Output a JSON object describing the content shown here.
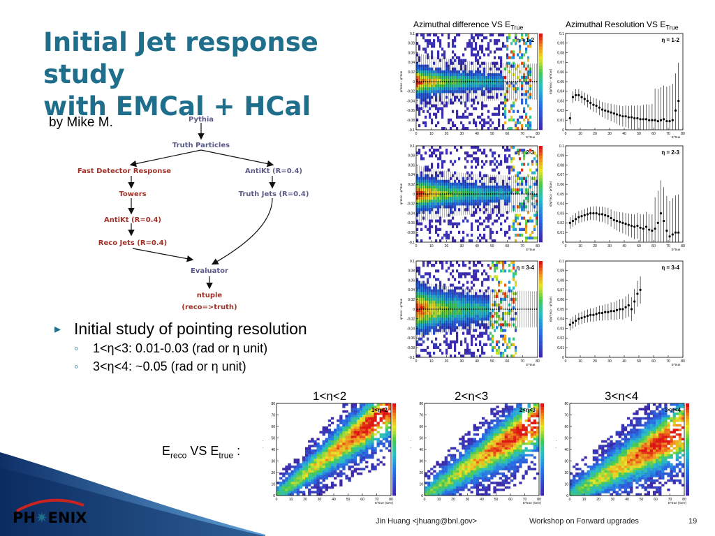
{
  "slide": {
    "title_line1": "Initial Jet response study",
    "title_line2": "with EMCal + HCal",
    "author": "by Mike M.",
    "page_number": "19"
  },
  "flowchart": {
    "nodes": {
      "pythia": "Pythia",
      "truth_particles": "Truth Particles",
      "fast_detector": "Fast Detector Response",
      "antikt_truth": "AntiKt (R=0.4)",
      "towers": "Towers",
      "truth_jets": "Truth Jets (R=0.4)",
      "antikt_reco": "AntiKt (R=0.4)",
      "reco_jets": "Reco Jets (R=0.4)",
      "evaluator": "Evaluator",
      "ntuple": "ntuple",
      "reco_truth": "(reco=>truth)"
    },
    "colors": {
      "blue_text": "#5b5b8a",
      "red_text": "#a0322a"
    }
  },
  "bullets": {
    "main": "Initial study of pointing resolution",
    "sub1": "1<η<3: 0.01-0.03 (rad or η unit)",
    "sub2": "3<η<4: ~0.05 (rad or η unit)"
  },
  "column_headers": {
    "left_main": "Azimuthal difference VS E",
    "left_sub": "True",
    "right_main": "Azimuthal Resolution VS E",
    "right_sub": "True"
  },
  "eta_headers": [
    "1<η<2",
    "2<η<3",
    "3<η<4"
  ],
  "ereco_label": {
    "e1": "E",
    "reco": "reco",
    "vs": " VS E",
    "true": "true",
    "colon": " :"
  },
  "logo": {
    "left": "PH",
    "star": "✷",
    "right": "ENIX"
  },
  "footer": {
    "author": "Jin Huang <jhuang@bnl.gov>",
    "workshop": "Workshop on Forward upgrades"
  },
  "chart_data": [
    {
      "type": "heatmap",
      "panel": "azimuthal-difference",
      "eta_label": "η = 1-2",
      "xlabel": "E^true",
      "ylabel": "φ^reco - φ^true",
      "xlim": [
        0,
        80
      ],
      "ylim": [
        -0.1,
        0.1
      ],
      "x_ticks": [
        "0",
        "10",
        "20",
        "30",
        "40",
        "50",
        "60",
        "70",
        "80"
      ],
      "y_ticks": [
        "-0.1",
        "-0.08",
        "-0.06",
        "-0.04",
        "-0.02",
        "0",
        "0.02",
        "0.04",
        "0.06",
        "0.08",
        "0.1"
      ]
    },
    {
      "type": "scatter",
      "panel": "azimuthal-resolution",
      "eta_label": "η = 1-2",
      "xlabel": "E^true",
      "ylabel": "σ(φ^reco - φ^true)",
      "xlim": [
        0,
        80
      ],
      "ylim": [
        0,
        0.1
      ],
      "x_ticks": [
        "0",
        "10",
        "20",
        "30",
        "40",
        "50",
        "60",
        "70",
        "80"
      ],
      "y_ticks": [
        "0",
        "0.01",
        "0.02",
        "0.03",
        "0.04",
        "0.05",
        "0.06",
        "0.07",
        "0.08",
        "0.09",
        "0.1"
      ],
      "x": [
        3,
        5,
        7,
        9,
        11,
        13,
        15,
        17,
        19,
        21,
        23,
        25,
        27,
        29,
        31,
        33,
        35,
        37,
        39,
        41,
        43,
        45,
        47,
        49,
        51,
        53,
        55,
        57,
        59,
        61,
        63,
        65,
        67,
        69,
        71,
        73,
        75,
        77
      ],
      "y": [
        0.012,
        0.034,
        0.036,
        0.036,
        0.034,
        0.032,
        0.03,
        0.028,
        0.026,
        0.025,
        0.023,
        0.021,
        0.02,
        0.019,
        0.018,
        0.017,
        0.016,
        0.015,
        0.014,
        0.014,
        0.013,
        0.013,
        0.012,
        0.012,
        0.011,
        0.011,
        0.011,
        0.01,
        0.01,
        0.01,
        0.009,
        0.01,
        0.011,
        0.009,
        0.009,
        0.01,
        0.02,
        0.03
      ]
    },
    {
      "type": "heatmap",
      "panel": "azimuthal-difference",
      "eta_label": "η = 2-3",
      "xlabel": "E^true",
      "ylabel": "φ^reco - φ^true",
      "xlim": [
        0,
        80
      ],
      "ylim": [
        -0.1,
        0.1
      ],
      "x_ticks": [
        "0",
        "10",
        "20",
        "30",
        "40",
        "50",
        "60",
        "70",
        "80"
      ],
      "y_ticks": [
        "-0.1",
        "-0.08",
        "-0.06",
        "-0.04",
        "-0.02",
        "0",
        "0.02",
        "0.04",
        "0.06",
        "0.08",
        "0.1"
      ]
    },
    {
      "type": "scatter",
      "panel": "azimuthal-resolution",
      "eta_label": "η = 2-3",
      "xlabel": "E^true",
      "ylabel": "σ(φ^reco - φ^true)",
      "xlim": [
        0,
        80
      ],
      "ylim": [
        0,
        0.1
      ],
      "x_ticks": [
        "0",
        "10",
        "20",
        "30",
        "40",
        "50",
        "60",
        "70",
        "80"
      ],
      "y_ticks": [
        "0",
        "0.01",
        "0.02",
        "0.03",
        "0.04",
        "0.05",
        "0.06",
        "0.07",
        "0.08",
        "0.09",
        "0.1"
      ],
      "x": [
        3,
        5,
        7,
        9,
        11,
        13,
        15,
        17,
        19,
        21,
        23,
        25,
        27,
        29,
        31,
        33,
        35,
        37,
        39,
        41,
        43,
        45,
        47,
        49,
        51,
        53,
        55,
        57,
        59,
        61,
        63,
        65,
        67,
        69,
        71,
        73,
        75,
        77
      ],
      "y": [
        0.02,
        0.022,
        0.024,
        0.026,
        0.027,
        0.028,
        0.029,
        0.03,
        0.03,
        0.03,
        0.029,
        0.029,
        0.028,
        0.027,
        0.025,
        0.023,
        0.022,
        0.021,
        0.02,
        0.019,
        0.018,
        0.017,
        0.016,
        0.017,
        0.015,
        0.014,
        0.016,
        0.013,
        0.012,
        0.014,
        0.02,
        0.03,
        0.022,
        0.012,
        0.006,
        0.008,
        0.01,
        0.01
      ]
    },
    {
      "type": "heatmap",
      "panel": "azimuthal-difference",
      "eta_label": "η = 3-4",
      "xlabel": "E^true",
      "ylabel": "φ^reco - φ^true",
      "xlim": [
        0,
        80
      ],
      "ylim": [
        -0.1,
        0.1
      ],
      "x_ticks": [
        "0",
        "10",
        "20",
        "30",
        "40",
        "50",
        "60",
        "70",
        "80"
      ],
      "y_ticks": [
        "-0.1",
        "-0.08",
        "-0.06",
        "-0.04",
        "-0.02",
        "0",
        "0.02",
        "0.04",
        "0.06",
        "0.08",
        "0.1"
      ]
    },
    {
      "type": "scatter",
      "panel": "azimuthal-resolution",
      "eta_label": "η = 3-4",
      "xlabel": "E^true",
      "ylabel": "σ(φ^reco - φ^true)",
      "xlim": [
        0,
        80
      ],
      "ylim": [
        0,
        0.1
      ],
      "x_ticks": [
        "0",
        "10",
        "20",
        "30",
        "40",
        "50",
        "60",
        "70",
        "80"
      ],
      "y_ticks": [
        "0",
        "0.01",
        "0.02",
        "0.03",
        "0.04",
        "0.05",
        "0.06",
        "0.07",
        "0.08",
        "0.09",
        "0.1"
      ],
      "x": [
        3,
        5,
        7,
        9,
        11,
        13,
        15,
        17,
        19,
        21,
        23,
        25,
        27,
        29,
        31,
        33,
        35,
        37,
        39,
        41,
        43,
        45,
        47,
        49,
        51
      ],
      "y": [
        0.034,
        0.036,
        0.038,
        0.04,
        0.041,
        0.042,
        0.043,
        0.044,
        0.044,
        0.045,
        0.046,
        0.046,
        0.047,
        0.047,
        0.048,
        0.048,
        0.049,
        0.05,
        0.05,
        0.052,
        0.054,
        0.05,
        0.058,
        0.066,
        0.07
      ]
    },
    {
      "type": "heatmap",
      "panel": "ereco-vs-etrue",
      "eta_label": "1<η<2",
      "xlabel": "E^true (GeV)",
      "ylabel": "E^reco (GeV)",
      "xlim": [
        0,
        80
      ],
      "ylim": [
        0,
        80
      ],
      "x_ticks": [
        "0",
        "10",
        "20",
        "30",
        "40",
        "50",
        "60",
        "70",
        "80"
      ],
      "y_ticks": [
        "0",
        "10",
        "20",
        "30",
        "40",
        "50",
        "60",
        "70",
        "80"
      ]
    },
    {
      "type": "heatmap",
      "panel": "ereco-vs-etrue",
      "eta_label": "2<η<3",
      "xlabel": "E^true (GeV)",
      "ylabel": "E^reco (GeV)",
      "xlim": [
        0,
        80
      ],
      "ylim": [
        0,
        80
      ],
      "x_ticks": [
        "0",
        "10",
        "20",
        "30",
        "40",
        "50",
        "60",
        "70",
        "80"
      ],
      "y_ticks": [
        "0",
        "10",
        "20",
        "30",
        "40",
        "50",
        "60",
        "70",
        "80"
      ]
    },
    {
      "type": "heatmap",
      "panel": "ereco-vs-etrue",
      "eta_label": "3<η<4",
      "xlabel": "E^true (GeV)",
      "ylabel": "E^reco (GeV)",
      "xlim": [
        0,
        80
      ],
      "ylim": [
        0,
        80
      ],
      "x_ticks": [
        "0",
        "10",
        "20",
        "30",
        "40",
        "50",
        "60",
        "70",
        "80"
      ],
      "y_ticks": [
        "0",
        "10",
        "20",
        "30",
        "40",
        "50",
        "60",
        "70",
        "80"
      ]
    }
  ]
}
